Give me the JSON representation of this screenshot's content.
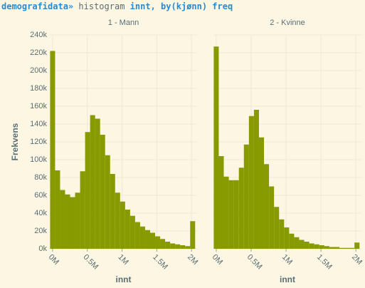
{
  "command": {
    "prompt": "demografidata»",
    "words": [
      "histogram",
      "innt,",
      "by(kjønn)",
      "freq"
    ]
  },
  "chart_data": [
    {
      "type": "histogram",
      "title": "1 - Mann",
      "x_label": "innt",
      "y_label": "Frekvens",
      "color": "#879a00",
      "grid": true,
      "bins": [
        -0.036,
        0.036,
        0.108,
        0.18,
        0.252,
        0.324,
        0.396,
        0.468,
        0.54,
        0.612,
        0.684,
        0.756,
        0.828,
        0.9,
        0.972,
        1.044,
        1.116,
        1.188,
        1.26,
        1.332,
        1.404,
        1.476,
        1.548,
        1.62,
        1.692,
        1.764,
        1.836,
        1.908,
        1.98,
        2.052
      ],
      "values": [
        222,
        88,
        66,
        61,
        58,
        63,
        87,
        131,
        150,
        146,
        128,
        105,
        84,
        63,
        53,
        44,
        37,
        30,
        25,
        21,
        18,
        14,
        11,
        8,
        6,
        5,
        4,
        3,
        31
      ],
      "xlim": [
        -0.04,
        2.08
      ],
      "xticks": [
        {
          "value": 0,
          "label": "0M"
        },
        {
          "value": 0.5,
          "label": "0.5M"
        },
        {
          "value": 1,
          "label": "1M"
        },
        {
          "value": 1.5,
          "label": "1.5M"
        },
        {
          "value": 2,
          "label": "2M"
        }
      ],
      "ylim": [
        0,
        240
      ],
      "yticks": [
        {
          "value": 0,
          "label": "0k"
        },
        {
          "value": 20,
          "label": "20k"
        },
        {
          "value": 40,
          "label": "40k"
        },
        {
          "value": 60,
          "label": "60k"
        },
        {
          "value": 80,
          "label": "80k"
        },
        {
          "value": 100,
          "label": "100k"
        },
        {
          "value": 120,
          "label": "120k"
        },
        {
          "value": 140,
          "label": "140k"
        },
        {
          "value": 160,
          "label": "160k"
        },
        {
          "value": 180,
          "label": "180k"
        },
        {
          "value": 200,
          "label": "200k"
        },
        {
          "value": 220,
          "label": "220k"
        },
        {
          "value": 240,
          "label": "240k"
        }
      ]
    },
    {
      "type": "histogram",
      "title": "2 - Kvinne",
      "x_label": "innt",
      "color": "#879a00",
      "grid": true,
      "bins": [
        -0.036,
        0.036,
        0.108,
        0.18,
        0.252,
        0.324,
        0.396,
        0.468,
        0.54,
        0.612,
        0.684,
        0.756,
        0.828,
        0.9,
        0.972,
        1.044,
        1.116,
        1.188,
        1.26,
        1.332,
        1.404,
        1.476,
        1.548,
        1.62,
        1.692,
        1.764,
        1.836,
        1.908,
        1.98,
        2.052
      ],
      "values": [
        227,
        104,
        81,
        77,
        77,
        91,
        117,
        149,
        156,
        125,
        95,
        70,
        47,
        33,
        24,
        17,
        13,
        10,
        8,
        6,
        5,
        4,
        3,
        2,
        2,
        1,
        1,
        1,
        7
      ],
      "xlim": [
        -0.04,
        2.08
      ],
      "xticks": [
        {
          "value": 0,
          "label": "0M"
        },
        {
          "value": 0.5,
          "label": "0.5M"
        },
        {
          "value": 1,
          "label": "1M"
        },
        {
          "value": 1.5,
          "label": "1.5M"
        },
        {
          "value": 2,
          "label": "2M"
        }
      ],
      "ylim": [
        0,
        240
      ],
      "yticks": [
        0,
        20,
        40,
        60,
        80,
        100,
        120,
        140,
        160,
        180,
        200,
        220,
        240
      ]
    }
  ]
}
